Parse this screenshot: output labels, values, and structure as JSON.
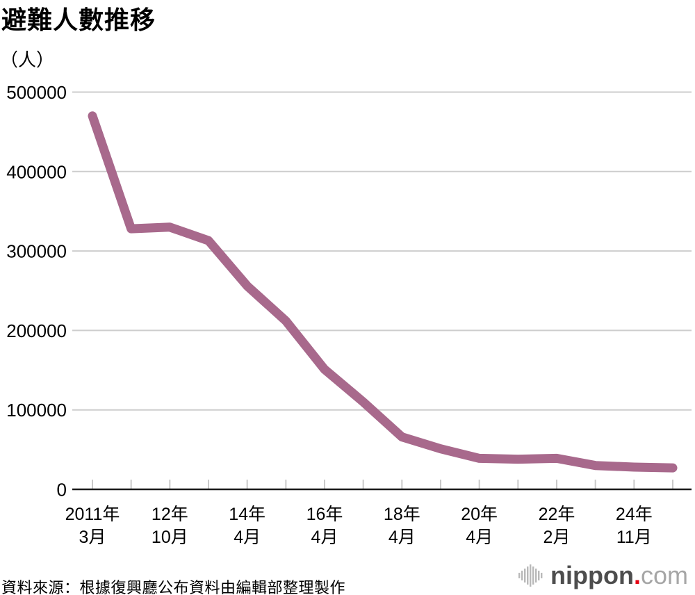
{
  "header": {
    "title": "避難人數推移",
    "unit_label": "（人）"
  },
  "chart_data": {
    "type": "line",
    "title": "避難人數推移",
    "ylabel": "（人）",
    "series_name": "避難人數",
    "categories": [
      "2011年\n3月",
      "",
      "12年\n10月",
      "",
      "14年\n4月",
      "",
      "16年\n4月",
      "",
      "18年\n4月",
      "",
      "20年\n4月",
      "",
      "22年\n2月",
      "",
      "24年\n11月",
      ""
    ],
    "values": [
      470000,
      328000,
      330000,
      313000,
      256000,
      212000,
      151000,
      110000,
      66000,
      51000,
      39000,
      38000,
      39000,
      30000,
      28000,
      27000
    ],
    "ylim": [
      0,
      500000
    ],
    "yticks": [
      0,
      100000,
      200000,
      300000,
      400000,
      500000
    ],
    "grid": true,
    "legend": "none",
    "line_color": "#a8698c",
    "grid_color": "#cdcdcd",
    "axis_color": "#1a1a1a",
    "tick_color": "#c9c9c9",
    "label_color": "#000000"
  },
  "footer": {
    "source": "資料來源：根據復興廳公布資料由編輯部整理製作",
    "logo": {
      "icon": "audio-bars-icon",
      "name": "nippon",
      "dot": ".",
      "tld": "com"
    }
  }
}
